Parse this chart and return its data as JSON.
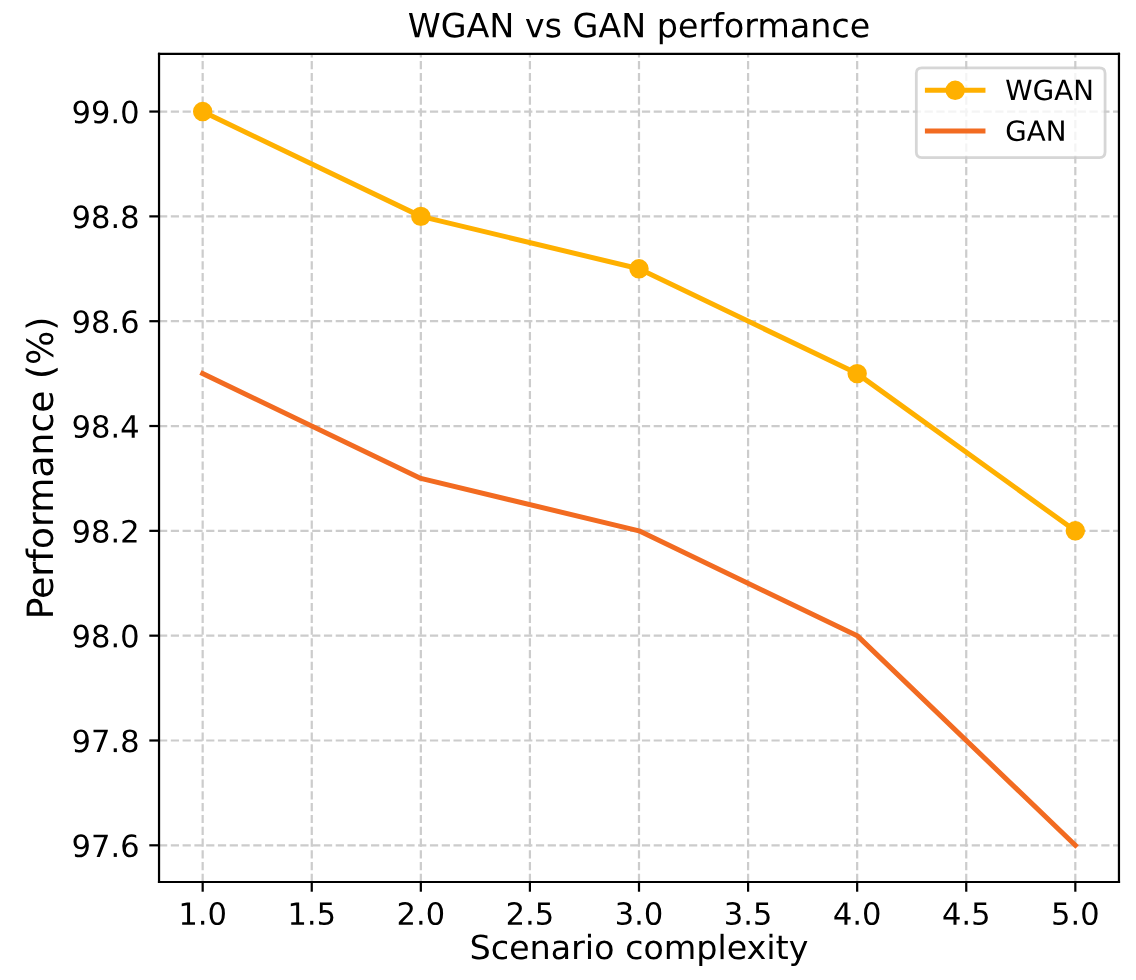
{
  "chart_data": {
    "type": "line",
    "title": "WGAN vs GAN performance",
    "xlabel": "Scenario complexity",
    "ylabel": "Performance (%)",
    "x": [
      1,
      2,
      3,
      4,
      5
    ],
    "series": [
      {
        "name": "WGAN",
        "color": "#ffb000",
        "values": [
          99.0,
          98.8,
          98.7,
          98.5,
          98.2
        ],
        "marker": "circle"
      },
      {
        "name": "GAN",
        "color": "#f26b21",
        "values": [
          98.5,
          98.3,
          98.2,
          98.0,
          97.6
        ],
        "marker": "none"
      }
    ],
    "xlim": [
      0.8,
      5.2
    ],
    "xticks": [
      {
        "value": 1,
        "label": "1.0"
      },
      1.5,
      {
        "value": 2,
        "label": "2.0"
      },
      2.5,
      {
        "value": 3,
        "label": "3.0"
      },
      3.5,
      {
        "value": 4,
        "label": "4.0"
      },
      4.5,
      {
        "value": 5,
        "label": "5.0"
      }
    ],
    "ylim": [
      97.53,
      99.11
    ],
    "yticks": [
      97.6,
      97.8,
      {
        "value": 98,
        "label": "98.0"
      },
      98.2,
      98.4,
      98.6,
      98.8,
      {
        "value": 99,
        "label": "99.0"
      }
    ],
    "grid": true,
    "legend": "top right",
    "line_style": "solid"
  }
}
